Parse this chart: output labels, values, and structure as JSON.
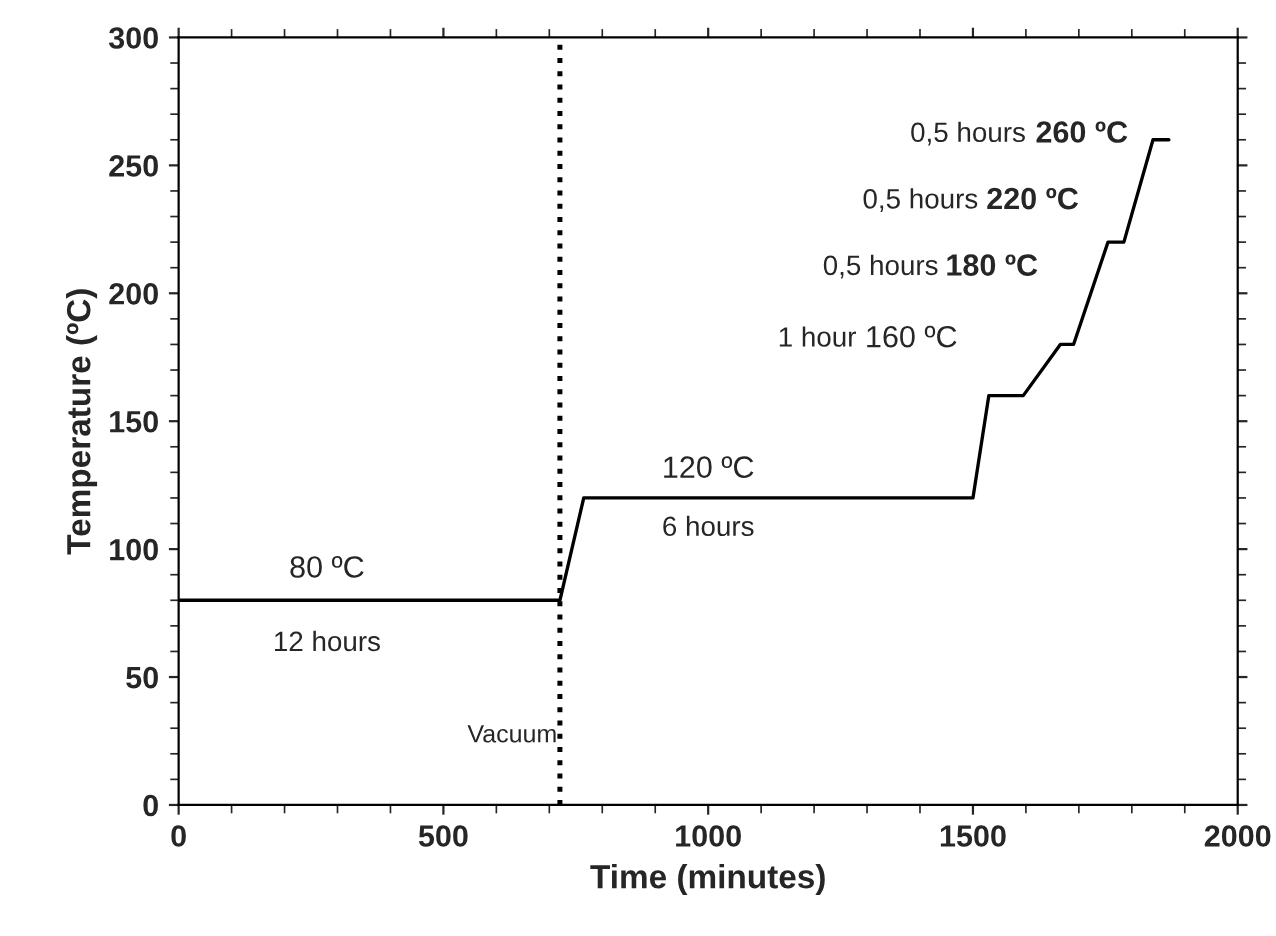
{
  "chart_data": {
    "type": "line",
    "xlabel": "Time (minutes)",
    "ylabel": "Temperature (ºC)",
    "x": [
      0,
      720,
      765,
      1500,
      1530,
      1595,
      1665,
      1690,
      1755,
      1785,
      1840,
      1870
    ],
    "series": [
      {
        "color": "#000000",
        "values": [
          80,
          80,
          120,
          120,
          160,
          160,
          180,
          180,
          220,
          220,
          260,
          260
        ]
      }
    ],
    "xlim": [
      0,
      2000
    ],
    "xticks": [
      0,
      500,
      1000,
      1500,
      2000
    ],
    "ylim": [
      0,
      300
    ],
    "yticks": [
      0,
      50,
      100,
      150,
      200,
      250,
      300
    ],
    "ref_lines": [
      {
        "axis": "x",
        "value": 720,
        "label": "Vacuum",
        "line_style": "dotted",
        "color": "#000000"
      }
    ],
    "annotations": [
      "80 ºC",
      "12 hours",
      "120 ºC",
      "6 hours",
      "1 hour",
      "160 ºC",
      "0,5 hours",
      "180 ºC",
      "0,5 hours",
      "220 ºC",
      "0,5 hours",
      "260 ºC"
    ],
    "grid": false,
    "legend": false,
    "marker": "none",
    "line_style": "solid"
  }
}
